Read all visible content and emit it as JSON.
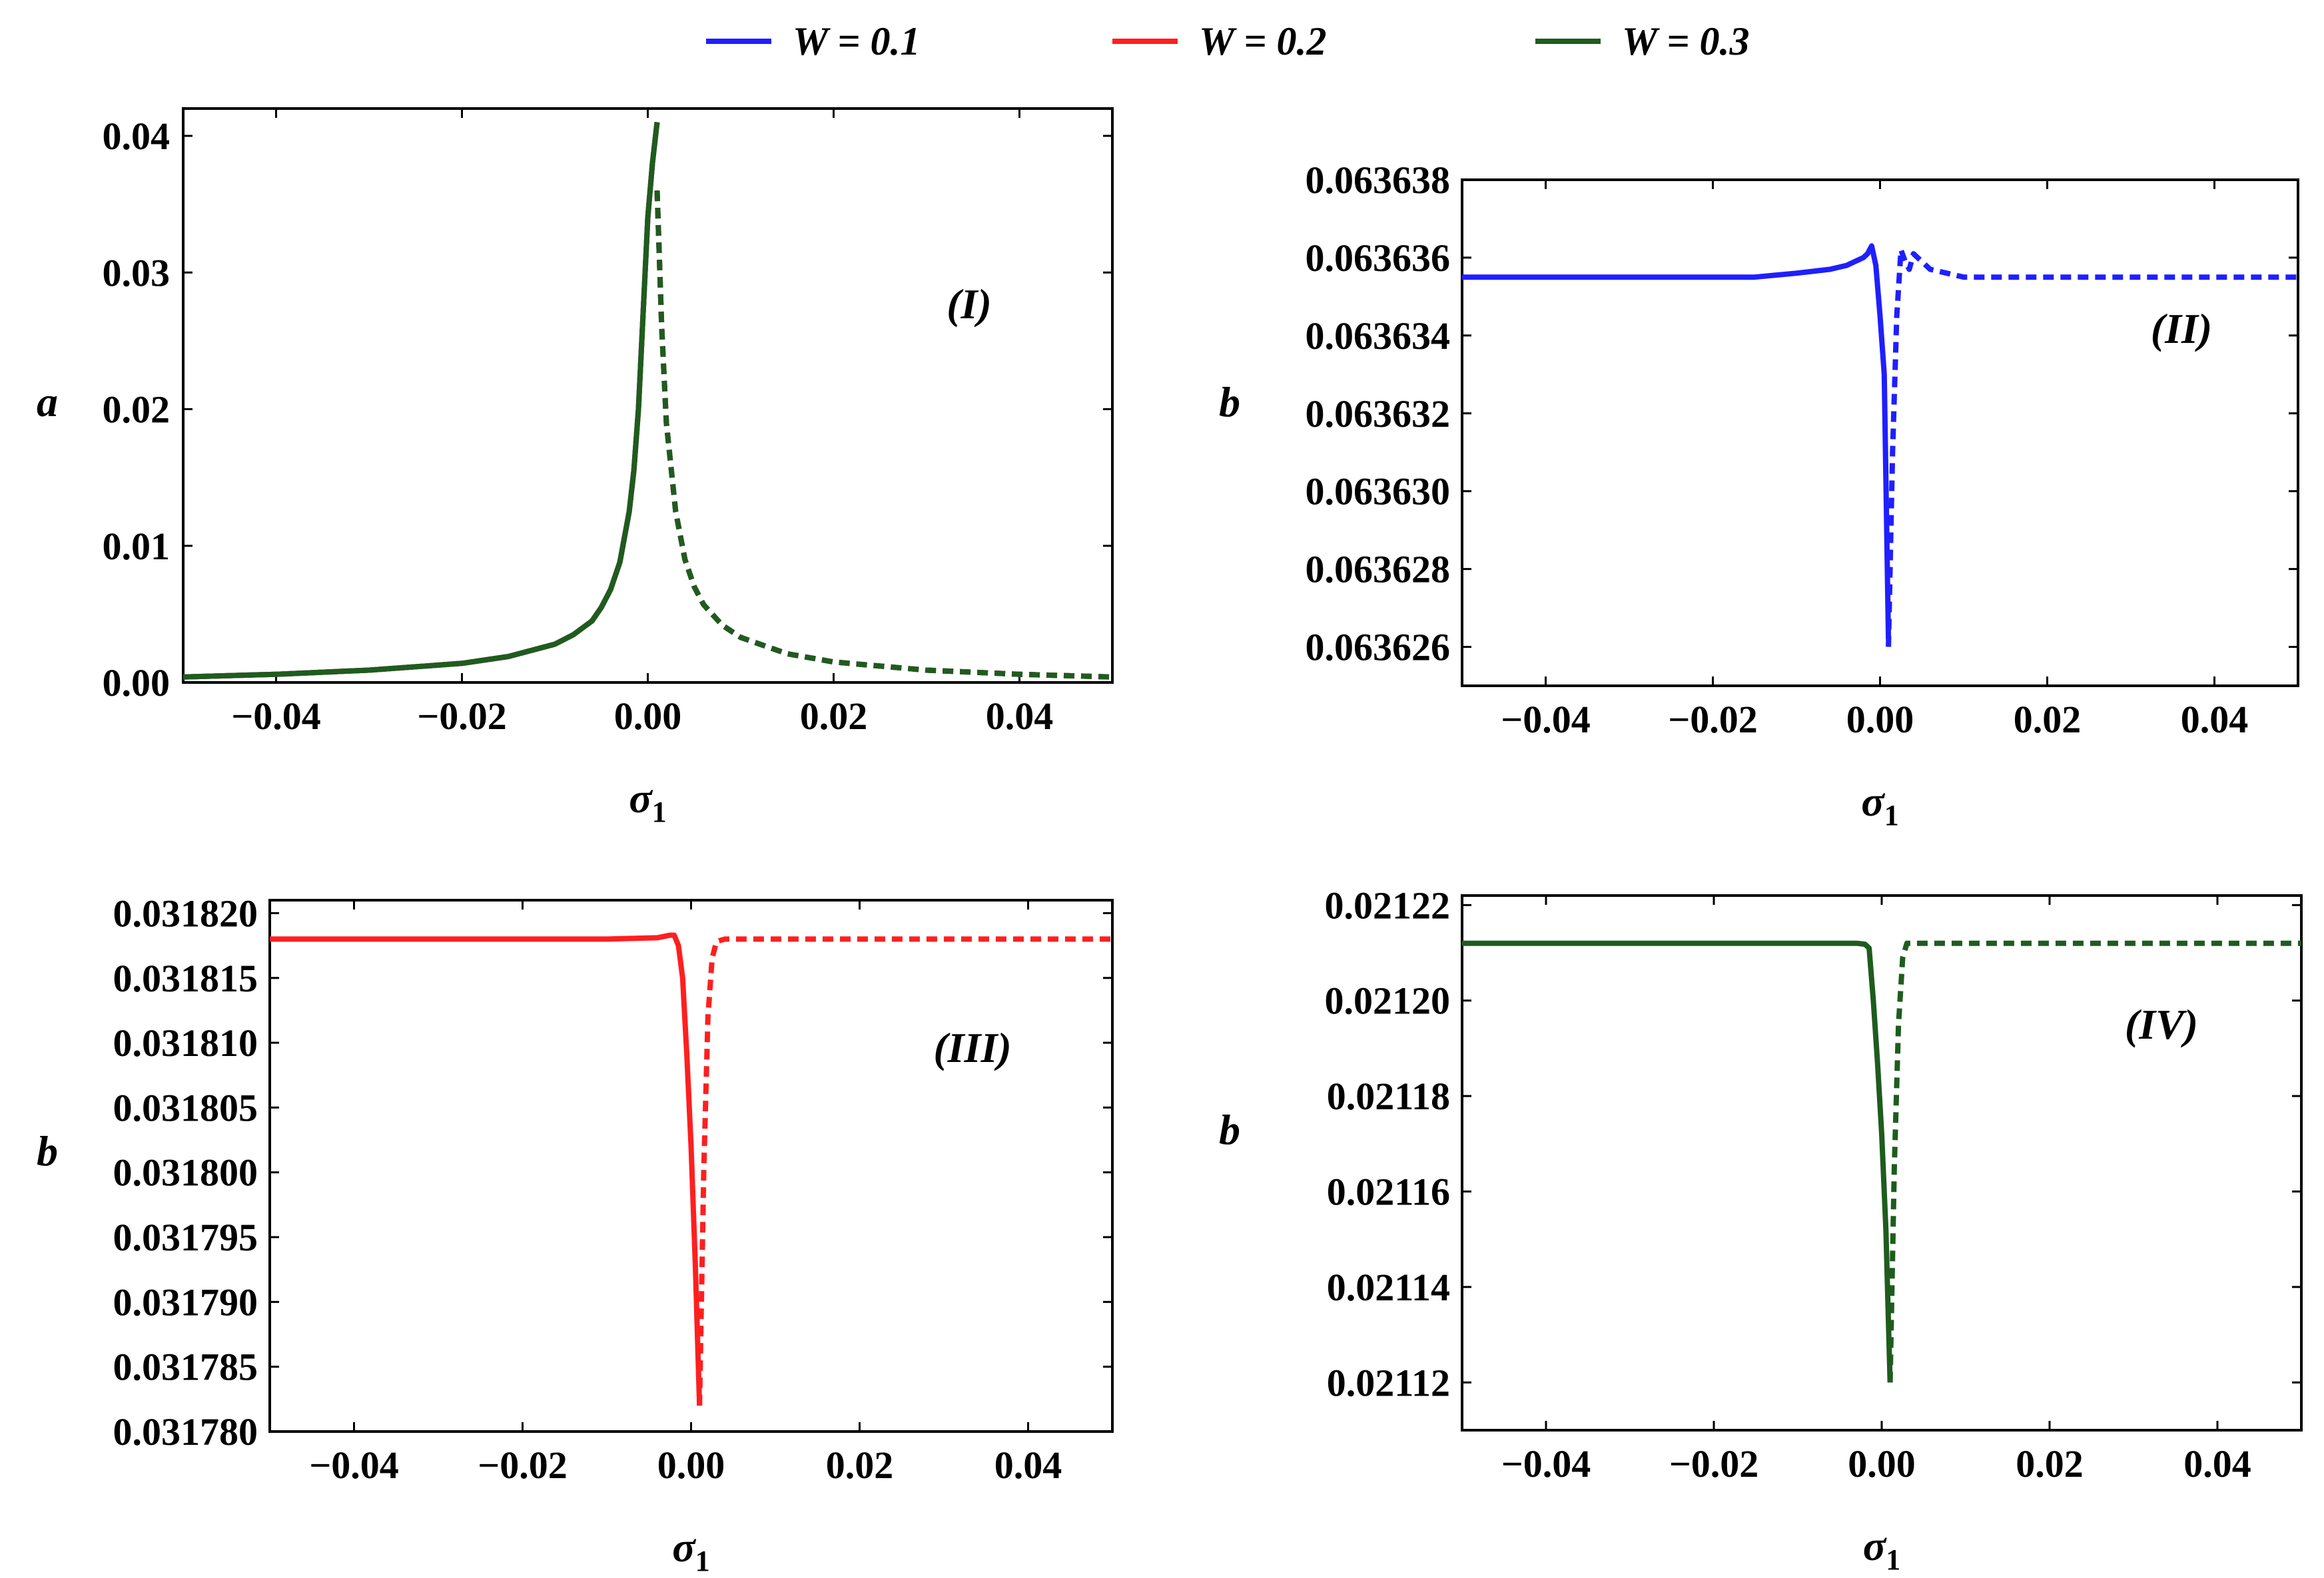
{
  "chart_data": {
    "type": "line",
    "legend": {
      "placement": "top-center",
      "items": [
        {
          "label": "W = 0.1",
          "color": "#1f1fff"
        },
        {
          "label": "W = 0.2",
          "color": "#ff1f1f"
        },
        {
          "label": "W = 0.3",
          "color": "#1e5c1e"
        }
      ]
    },
    "panels": [
      {
        "tag": "(I)",
        "xlabel": "σ1",
        "ylabel": "a",
        "xlim": [
          -0.05,
          0.05
        ],
        "ylim": [
          0.0,
          0.042
        ],
        "xticks": [
          "-0.04",
          "-0.02",
          "0.00",
          "0.02",
          "0.04"
        ],
        "xtick_values": [
          -0.04,
          -0.02,
          0.0,
          0.02,
          0.04
        ],
        "yticks": [
          "0.00",
          "0.01",
          "0.02",
          "0.03",
          "0.04"
        ],
        "ytick_values": [
          0.0,
          0.01,
          0.02,
          0.03,
          0.04
        ],
        "series": [
          {
            "name": "W = 0.1",
            "color": "#1f1fff",
            "style": "solid",
            "x": [
              -0.05,
              -0.04,
              -0.03,
              -0.02,
              -0.015,
              -0.01,
              -0.008,
              -0.006,
              -0.005,
              -0.004,
              -0.003,
              -0.002,
              -0.0015,
              -0.001,
              -0.0005,
              0.0,
              0.0005,
              0.001
            ],
            "y": [
              0.0004,
              0.0006,
              0.0009,
              0.0014,
              0.0019,
              0.0028,
              0.0035,
              0.0045,
              0.0055,
              0.0068,
              0.0088,
              0.0125,
              0.0155,
              0.02,
              0.027,
              0.034,
              0.038,
              0.041
            ]
          },
          {
            "name": "W = 0.1",
            "color": "#1f1fff",
            "style": "dashed",
            "x": [
              0.001,
              0.0015,
              0.002,
              0.003,
              0.004,
              0.005,
              0.006,
              0.008,
              0.01,
              0.015,
              0.02,
              0.03,
              0.04,
              0.05
            ],
            "y": [
              0.036,
              0.026,
              0.019,
              0.0125,
              0.009,
              0.007,
              0.0057,
              0.0042,
              0.0033,
              0.0021,
              0.0015,
              0.0009,
              0.0006,
              0.0004
            ]
          },
          {
            "name": "W = 0.2",
            "color": "#ff1f1f",
            "style": "solid",
            "x": [
              -0.05,
              -0.04,
              -0.03,
              -0.02,
              -0.015,
              -0.01,
              -0.008,
              -0.006,
              -0.005,
              -0.004,
              -0.003,
              -0.002,
              -0.0015,
              -0.001,
              -0.0005,
              0.0,
              0.0005,
              0.001
            ],
            "y": [
              0.0004,
              0.0006,
              0.0009,
              0.0014,
              0.0019,
              0.0028,
              0.0035,
              0.0045,
              0.0055,
              0.0068,
              0.0088,
              0.0125,
              0.0155,
              0.02,
              0.027,
              0.034,
              0.038,
              0.041
            ]
          },
          {
            "name": "W = 0.2",
            "color": "#ff1f1f",
            "style": "dashed",
            "x": [
              0.001,
              0.0015,
              0.002,
              0.003,
              0.004,
              0.005,
              0.006,
              0.008,
              0.01,
              0.015,
              0.02,
              0.03,
              0.04,
              0.05
            ],
            "y": [
              0.036,
              0.026,
              0.019,
              0.0125,
              0.009,
              0.007,
              0.0057,
              0.0042,
              0.0033,
              0.0021,
              0.0015,
              0.0009,
              0.0006,
              0.0004
            ]
          },
          {
            "name": "W = 0.3",
            "color": "#1e5c1e",
            "style": "solid",
            "x": [
              -0.05,
              -0.04,
              -0.03,
              -0.02,
              -0.015,
              -0.01,
              -0.008,
              -0.006,
              -0.005,
              -0.004,
              -0.003,
              -0.002,
              -0.0015,
              -0.001,
              -0.0005,
              0.0,
              0.0005,
              0.001
            ],
            "y": [
              0.0004,
              0.0006,
              0.0009,
              0.0014,
              0.0019,
              0.0028,
              0.0035,
              0.0045,
              0.0055,
              0.0068,
              0.0088,
              0.0125,
              0.0155,
              0.02,
              0.027,
              0.034,
              0.038,
              0.041
            ]
          },
          {
            "name": "W = 0.3",
            "color": "#1e5c1e",
            "style": "dashed",
            "x": [
              0.001,
              0.0015,
              0.002,
              0.003,
              0.004,
              0.005,
              0.006,
              0.008,
              0.01,
              0.015,
              0.02,
              0.03,
              0.04,
              0.05
            ],
            "y": [
              0.036,
              0.026,
              0.019,
              0.0125,
              0.009,
              0.007,
              0.0057,
              0.0042,
              0.0033,
              0.0021,
              0.0015,
              0.0009,
              0.0006,
              0.0004
            ]
          }
        ]
      },
      {
        "tag": "(II)",
        "xlabel": "σ1",
        "ylabel": "b",
        "xlim": [
          -0.05,
          0.05
        ],
        "ylim": [
          0.063625,
          0.063638
        ],
        "xticks": [
          "-0.04",
          "-0.02",
          "0.00",
          "0.02",
          "0.04"
        ],
        "xtick_values": [
          -0.04,
          -0.02,
          0.0,
          0.02,
          0.04
        ],
        "yticks": [
          "0.063626",
          "0.063628",
          "0.063630",
          "0.063632",
          "0.063634",
          "0.063636",
          "0.063638"
        ],
        "ytick_values": [
          0.063626,
          0.063628,
          0.06363,
          0.063632,
          0.063634,
          0.063636,
          0.063638
        ],
        "series": [
          {
            "name": "W = 0.1",
            "color": "#1f1fff",
            "style": "solid",
            "x": [
              -0.05,
              -0.03,
              -0.015,
              -0.01,
              -0.006,
              -0.004,
              -0.003,
              -0.002,
              -0.0015,
              -0.001,
              -0.0005,
              0.0,
              0.0005,
              0.001
            ],
            "y": [
              0.0636355,
              0.0636355,
              0.0636355,
              0.0636356,
              0.0636357,
              0.0636358,
              0.0636359,
              0.063636,
              0.0636361,
              0.0636363,
              0.0636358,
              0.0636345,
              0.063633,
              0.0636262
            ]
          },
          {
            "name": "W = 0.1",
            "color": "#1f1fff",
            "style": "dashed",
            "x": [
              0.001,
              0.0015,
              0.002,
              0.0025,
              0.003,
              0.0035,
              0.004,
              0.005,
              0.006,
              0.008,
              0.01,
              0.02,
              0.05
            ],
            "y": [
              0.063626,
              0.063631,
              0.0636345,
              0.0636362,
              0.0636359,
              0.0636357,
              0.0636361,
              0.0636359,
              0.0636357,
              0.0636356,
              0.0636355,
              0.0636355,
              0.0636355
            ]
          }
        ]
      },
      {
        "tag": "(III)",
        "xlabel": "σ1",
        "ylabel": "b",
        "xlim": [
          -0.05,
          0.05
        ],
        "ylim": [
          0.03178,
          0.031821
        ],
        "xticks": [
          "-0.04",
          "-0.02",
          "0.00",
          "0.02",
          "0.04"
        ],
        "xtick_values": [
          -0.04,
          -0.02,
          0.0,
          0.02,
          0.04
        ],
        "yticks": [
          "0.031780",
          "0.031785",
          "0.031790",
          "0.031795",
          "0.031800",
          "0.031805",
          "0.031810",
          "0.031815",
          "0.031820"
        ],
        "ytick_values": [
          0.03178,
          0.031785,
          0.03179,
          0.031795,
          0.0318,
          0.031805,
          0.03181,
          0.031815,
          0.03182
        ],
        "series": [
          {
            "name": "W = 0.2",
            "color": "#ff1f1f",
            "style": "solid",
            "x": [
              -0.05,
              -0.03,
              -0.01,
              -0.004,
              -0.0025,
              -0.002,
              -0.0015,
              -0.001,
              -0.0005,
              0.0,
              0.0005,
              0.001
            ],
            "y": [
              0.031818,
              0.031818,
              0.031818,
              0.0318181,
              0.0318183,
              0.0318183,
              0.0318175,
              0.031815,
              0.031809,
              0.031802,
              0.031793,
              0.031782
            ]
          },
          {
            "name": "W = 0.2",
            "color": "#ff1f1f",
            "style": "dashed",
            "x": [
              0.001,
              0.0015,
              0.002,
              0.0025,
              0.003,
              0.004,
              0.006,
              0.01,
              0.03,
              0.05
            ],
            "y": [
              0.031782,
              0.0318,
              0.031812,
              0.0318165,
              0.0318178,
              0.031818,
              0.031818,
              0.031818,
              0.031818,
              0.031818
            ]
          }
        ]
      },
      {
        "tag": "(IV)",
        "xlabel": "σ1",
        "ylabel": "b",
        "xlim": [
          -0.05,
          0.05
        ],
        "ylim": [
          0.02111,
          0.021222
        ],
        "xticks": [
          "-0.04",
          "-0.02",
          "0.00",
          "0.02",
          "0.04"
        ],
        "xtick_values": [
          -0.04,
          -0.02,
          0.0,
          0.02,
          0.04
        ],
        "yticks": [
          "0.02112",
          "0.02114",
          "0.02116",
          "0.02118",
          "0.02120",
          "0.02122"
        ],
        "ytick_values": [
          0.02112,
          0.02114,
          0.02116,
          0.02118,
          0.0212,
          0.02122
        ],
        "series": [
          {
            "name": "W = 0.3",
            "color": "#1e5c1e",
            "style": "solid",
            "x": [
              -0.05,
              -0.03,
              -0.01,
              -0.003,
              -0.002,
              -0.0015,
              -0.001,
              -0.0005,
              0.0,
              0.0005,
              0.001
            ],
            "y": [
              0.021212,
              0.021212,
              0.021212,
              0.021212,
              0.0212118,
              0.021211,
              0.0212,
              0.021187,
              0.021172,
              0.021152,
              0.02112
            ]
          },
          {
            "name": "W = 0.3",
            "color": "#1e5c1e",
            "style": "dashed",
            "x": [
              0.001,
              0.0015,
              0.002,
              0.0025,
              0.003,
              0.004,
              0.006,
              0.01,
              0.03,
              0.05
            ],
            "y": [
              0.02112,
              0.021165,
              0.021195,
              0.021209,
              0.021212,
              0.021212,
              0.021212,
              0.021212,
              0.021212,
              0.021212
            ]
          }
        ]
      }
    ]
  }
}
